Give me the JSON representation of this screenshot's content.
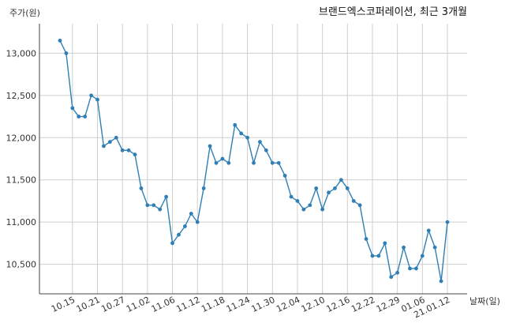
{
  "chart_data": {
    "type": "line",
    "title": "브랜드엑스코퍼레이션, 최근 3개월",
    "ylabel": "주가(원)",
    "xlabel": "날짜(일)",
    "ylim": [
      10150,
      13350
    ],
    "yticks": [
      10500,
      11000,
      11500,
      12000,
      12500,
      13000
    ],
    "ytick_labels": [
      "10,500",
      "11,000",
      "11,500",
      "12,000",
      "12,500",
      "13,000"
    ],
    "xtick_labels": [
      "10.15",
      "10.21",
      "10.27",
      "11.02",
      "11.06",
      "11.12",
      "11.18",
      "11.24",
      "11.30",
      "12.04",
      "12.10",
      "12.16",
      "12.22",
      "12.29",
      "01.06",
      "21.01.12"
    ],
    "xtick_indices": [
      2,
      6,
      10,
      14,
      18,
      22,
      26,
      30,
      34,
      38,
      42,
      46,
      50,
      54,
      58,
      62
    ],
    "grid": true,
    "color": "#2f7fb6",
    "series": [
      {
        "values": [
          13150,
          13000,
          12350,
          12250,
          12250,
          12500,
          12450,
          11900,
          11950,
          12000,
          11850,
          11850,
          11800,
          11400,
          11200,
          11200,
          11150,
          11300,
          10750,
          10850,
          10950,
          11100,
          11000,
          11400,
          11900,
          11700,
          11750,
          11700,
          12150,
          12050,
          12000,
          11700,
          11950,
          11850,
          11700,
          11700,
          11550,
          11300,
          11250,
          11150,
          11200,
          11400,
          11150,
          11350,
          11400,
          11500,
          11400,
          11250,
          11200,
          10800,
          10600,
          10600,
          10750,
          10350,
          10400,
          10700,
          10450,
          10450,
          10600,
          10900,
          10700,
          10300,
          11000
        ]
      }
    ]
  }
}
